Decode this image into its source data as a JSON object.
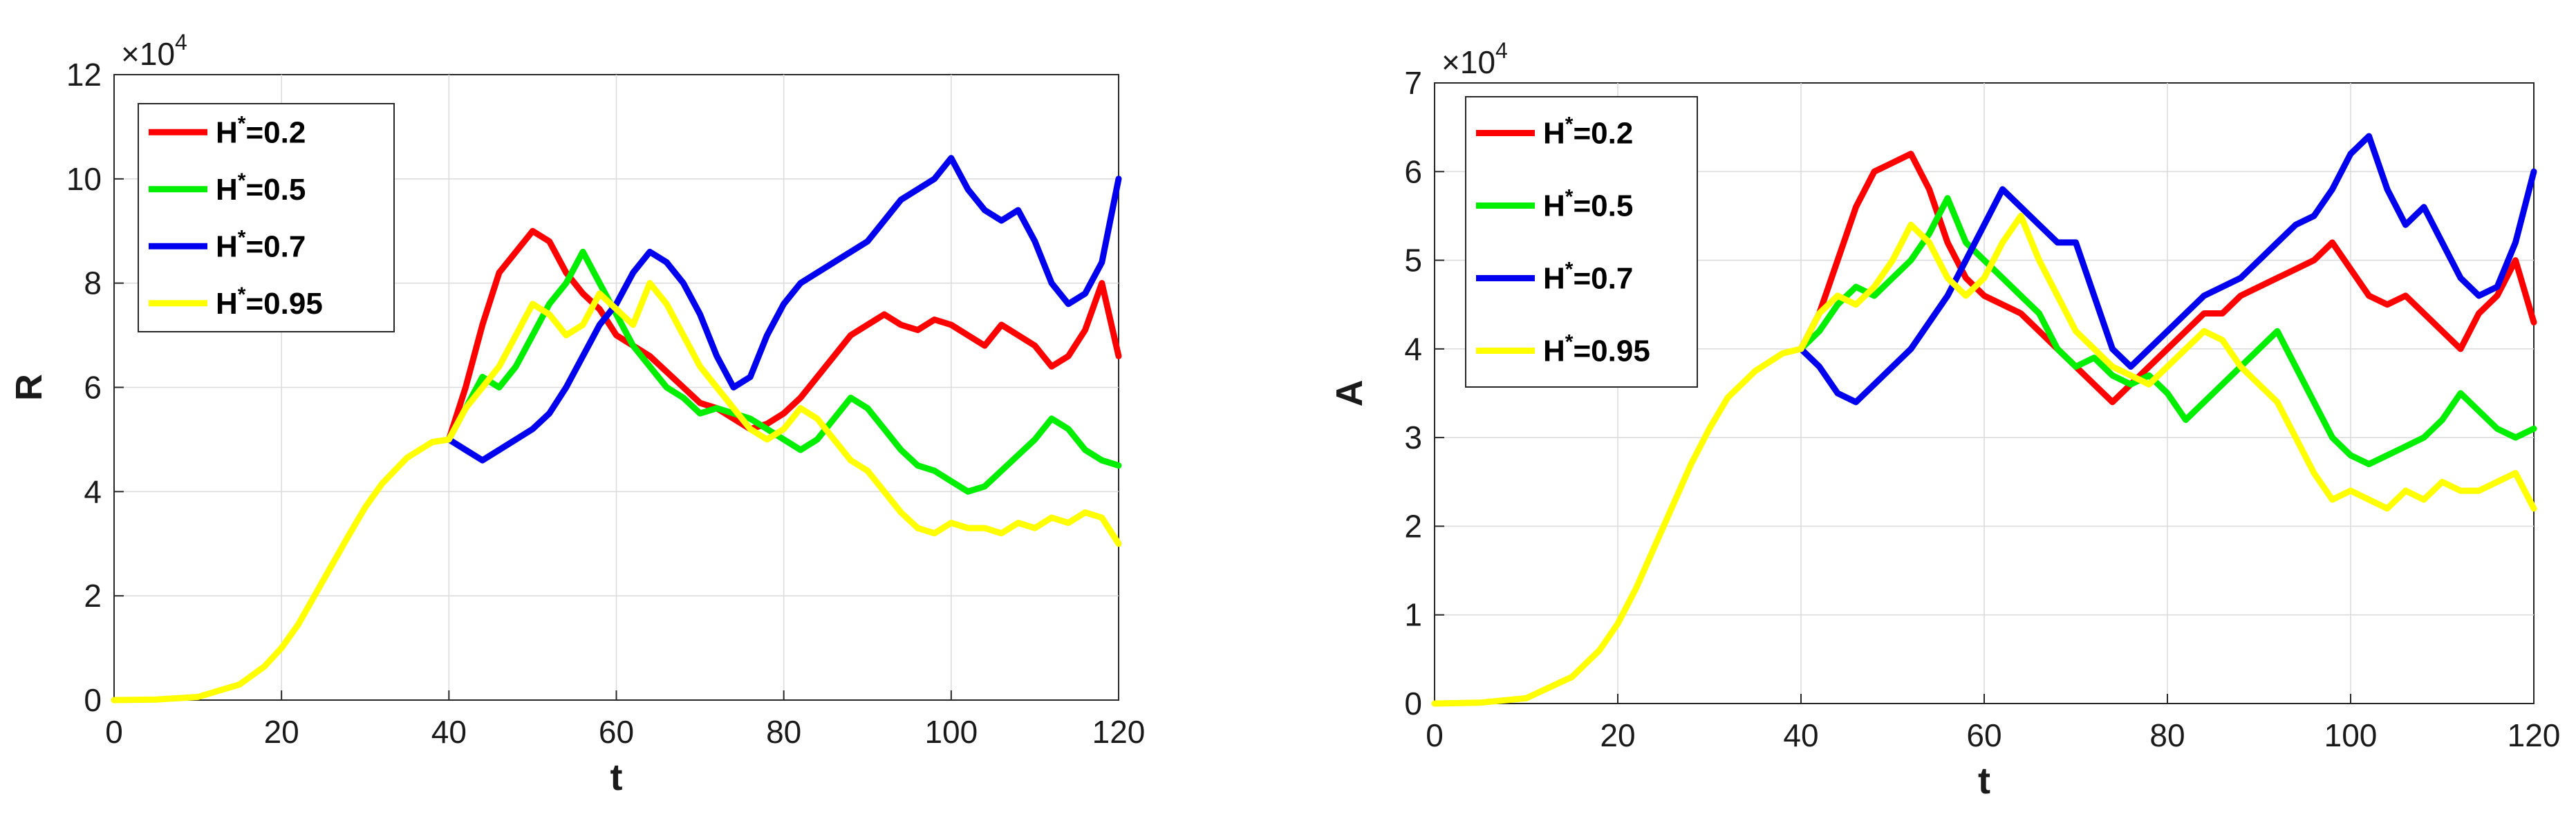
{
  "chart_data": [
    {
      "type": "line",
      "ylabel": "R",
      "xlabel": "t",
      "xlim": [
        0,
        120
      ],
      "ylim": [
        0,
        120000
      ],
      "xticks": [
        0,
        20,
        40,
        60,
        80,
        100,
        120
      ],
      "xtick_labels": [
        "0",
        "20",
        "40",
        "60",
        "80",
        "100",
        "120"
      ],
      "yticks": [
        0,
        20000,
        40000,
        60000,
        80000,
        100000,
        120000
      ],
      "ytick_labels": [
        "0",
        "2",
        "4",
        "6",
        "8",
        "10",
        "12"
      ],
      "exponent_label": {
        "base": "×10",
        "power": "4"
      },
      "grid": true,
      "legend_position": "top-left",
      "deterministic": {
        "x": [
          0,
          5,
          10,
          15,
          18,
          20,
          22,
          25,
          28,
          30,
          32,
          35,
          38,
          40
        ],
        "y": [
          0,
          100,
          600,
          3000,
          6500,
          10000,
          14500,
          23000,
          31500,
          37000,
          41500,
          46500,
          49500,
          50000
        ]
      },
      "series": [
        {
          "name": "H",
          "sup": "*",
          "value": "=0.2",
          "color": "#ff0000",
          "x": [
            40,
            42,
            44,
            46,
            48,
            50,
            52,
            54,
            56,
            58,
            60,
            62,
            64,
            66,
            68,
            70,
            72,
            74,
            76,
            78,
            80,
            82,
            84,
            86,
            88,
            90,
            92,
            94,
            96,
            98,
            100,
            102,
            104,
            106,
            108,
            110,
            112,
            114,
            116,
            118,
            120
          ],
          "y": [
            50000,
            60000,
            72000,
            82000,
            86000,
            90000,
            88000,
            82000,
            78000,
            75000,
            70000,
            68000,
            66000,
            63000,
            60000,
            57000,
            56000,
            54000,
            52000,
            53000,
            55000,
            58000,
            62000,
            66000,
            70000,
            72000,
            74000,
            72000,
            71000,
            73000,
            72000,
            70000,
            68000,
            72000,
            70000,
            68000,
            64000,
            66000,
            71000,
            80000,
            66000
          ]
        },
        {
          "name": "H",
          "sup": "*",
          "value": "=0.5",
          "color": "#00ee00",
          "x": [
            40,
            42,
            44,
            46,
            48,
            50,
            52,
            54,
            56,
            58,
            60,
            62,
            64,
            66,
            68,
            70,
            72,
            74,
            76,
            78,
            80,
            82,
            84,
            86,
            88,
            90,
            92,
            94,
            96,
            98,
            100,
            102,
            104,
            106,
            108,
            110,
            112,
            114,
            116,
            118,
            120
          ],
          "y": [
            50000,
            56000,
            62000,
            60000,
            64000,
            70000,
            76000,
            80000,
            86000,
            80000,
            74000,
            68000,
            64000,
            60000,
            58000,
            55000,
            56000,
            55000,
            54000,
            52000,
            50000,
            48000,
            50000,
            54000,
            58000,
            56000,
            52000,
            48000,
            45000,
            44000,
            42000,
            40000,
            41000,
            44000,
            47000,
            50000,
            54000,
            52000,
            48000,
            46000,
            45000
          ]
        },
        {
          "name": "H",
          "sup": "*",
          "value": "=0.7",
          "color": "#0000ee",
          "x": [
            40,
            42,
            44,
            46,
            48,
            50,
            52,
            54,
            56,
            58,
            60,
            62,
            64,
            66,
            68,
            70,
            72,
            74,
            76,
            78,
            80,
            82,
            84,
            86,
            88,
            90,
            92,
            94,
            96,
            98,
            100,
            102,
            104,
            106,
            108,
            110,
            112,
            114,
            116,
            118,
            120
          ],
          "y": [
            50000,
            48000,
            46000,
            48000,
            50000,
            52000,
            55000,
            60000,
            66000,
            72000,
            76000,
            82000,
            86000,
            84000,
            80000,
            74000,
            66000,
            60000,
            62000,
            70000,
            76000,
            80000,
            82000,
            84000,
            86000,
            88000,
            92000,
            96000,
            98000,
            100000,
            104000,
            98000,
            94000,
            92000,
            94000,
            88000,
            80000,
            76000,
            78000,
            84000,
            100000
          ]
        },
        {
          "name": "H",
          "sup": "*",
          "value": "=0.95",
          "color": "#ffff00",
          "x": [
            40,
            42,
            44,
            46,
            48,
            50,
            52,
            54,
            56,
            58,
            60,
            62,
            64,
            66,
            68,
            70,
            72,
            74,
            76,
            78,
            80,
            82,
            84,
            86,
            88,
            90,
            92,
            94,
            96,
            98,
            100,
            102,
            104,
            106,
            108,
            110,
            112,
            114,
            116,
            118,
            120
          ],
          "y": [
            50000,
            56000,
            60000,
            64000,
            70000,
            76000,
            74000,
            70000,
            72000,
            78000,
            75000,
            72000,
            80000,
            76000,
            70000,
            64000,
            60000,
            56000,
            52000,
            50000,
            52000,
            56000,
            54000,
            50000,
            46000,
            44000,
            40000,
            36000,
            33000,
            32000,
            34000,
            33000,
            33000,
            32000,
            34000,
            33000,
            35000,
            34000,
            36000,
            35000,
            30000
          ]
        }
      ]
    },
    {
      "type": "line",
      "ylabel": "A",
      "xlabel": "t",
      "xlim": [
        0,
        120
      ],
      "ylim": [
        0,
        70000
      ],
      "xticks": [
        0,
        20,
        40,
        60,
        80,
        100,
        120
      ],
      "xtick_labels": [
        "0",
        "20",
        "40",
        "60",
        "80",
        "100",
        "120"
      ],
      "yticks": [
        0,
        10000,
        20000,
        30000,
        40000,
        50000,
        60000,
        70000
      ],
      "ytick_labels": [
        "0",
        "1",
        "2",
        "3",
        "4",
        "5",
        "6",
        "7"
      ],
      "exponent_label": {
        "base": "×10",
        "power": "4"
      },
      "grid": true,
      "legend_position": "top-left",
      "deterministic": {
        "x": [
          0,
          5,
          10,
          15,
          18,
          20,
          22,
          25,
          28,
          30,
          32,
          35,
          38,
          40
        ],
        "y": [
          0,
          100,
          600,
          3000,
          6000,
          9000,
          13000,
          20000,
          27000,
          31000,
          34500,
          37500,
          39500,
          40000
        ]
      },
      "series": [
        {
          "name": "H",
          "sup": "*",
          "value": "=0.2",
          "color": "#ff0000",
          "x": [
            40,
            42,
            44,
            46,
            48,
            50,
            52,
            54,
            56,
            58,
            60,
            62,
            64,
            66,
            68,
            70,
            72,
            74,
            76,
            78,
            80,
            82,
            84,
            86,
            88,
            90,
            92,
            94,
            96,
            98,
            100,
            102,
            104,
            106,
            108,
            110,
            112,
            114,
            116,
            118,
            120
          ],
          "y": [
            40000,
            44000,
            50000,
            56000,
            60000,
            61000,
            62000,
            58000,
            52000,
            48000,
            46000,
            45000,
            44000,
            42000,
            40000,
            38000,
            36000,
            34000,
            36000,
            38000,
            40000,
            42000,
            44000,
            44000,
            46000,
            47000,
            48000,
            49000,
            50000,
            52000,
            49000,
            46000,
            45000,
            46000,
            44000,
            42000,
            40000,
            44000,
            46000,
            50000,
            43000
          ]
        },
        {
          "name": "H",
          "sup": "*",
          "value": "=0.5",
          "color": "#00ee00",
          "x": [
            40,
            42,
            44,
            46,
            48,
            50,
            52,
            54,
            56,
            58,
            60,
            62,
            64,
            66,
            68,
            70,
            72,
            74,
            76,
            78,
            80,
            82,
            84,
            86,
            88,
            90,
            92,
            94,
            96,
            98,
            100,
            102,
            104,
            106,
            108,
            110,
            112,
            114,
            116,
            118,
            120
          ],
          "y": [
            40000,
            42000,
            45000,
            47000,
            46000,
            48000,
            50000,
            53000,
            57000,
            52000,
            50000,
            48000,
            46000,
            44000,
            40000,
            38000,
            39000,
            37000,
            36000,
            37000,
            35000,
            32000,
            34000,
            36000,
            38000,
            40000,
            42000,
            38000,
            34000,
            30000,
            28000,
            27000,
            28000,
            29000,
            30000,
            32000,
            35000,
            33000,
            31000,
            30000,
            31000
          ]
        },
        {
          "name": "H",
          "sup": "*",
          "value": "=0.7",
          "color": "#0000ee",
          "x": [
            40,
            42,
            44,
            46,
            48,
            50,
            52,
            54,
            56,
            58,
            60,
            62,
            64,
            66,
            68,
            70,
            72,
            74,
            76,
            78,
            80,
            82,
            84,
            86,
            88,
            90,
            92,
            94,
            96,
            98,
            100,
            102,
            104,
            106,
            108,
            110,
            112,
            114,
            116,
            118,
            120
          ],
          "y": [
            40000,
            38000,
            35000,
            34000,
            36000,
            38000,
            40000,
            43000,
            46000,
            50000,
            54000,
            58000,
            56000,
            54000,
            52000,
            52000,
            46000,
            40000,
            38000,
            40000,
            42000,
            44000,
            46000,
            47000,
            48000,
            50000,
            52000,
            54000,
            55000,
            58000,
            62000,
            64000,
            58000,
            54000,
            56000,
            52000,
            48000,
            46000,
            47000,
            52000,
            60000
          ]
        },
        {
          "name": "H",
          "sup": "*",
          "value": "=0.95",
          "color": "#ffff00",
          "x": [
            40,
            42,
            44,
            46,
            48,
            50,
            52,
            54,
            56,
            58,
            60,
            62,
            64,
            66,
            68,
            70,
            72,
            74,
            76,
            78,
            80,
            82,
            84,
            86,
            88,
            90,
            92,
            94,
            96,
            98,
            100,
            102,
            104,
            106,
            108,
            110,
            112,
            114,
            116,
            118,
            120
          ],
          "y": [
            40000,
            44000,
            46000,
            45000,
            47000,
            50000,
            54000,
            52000,
            48000,
            46000,
            48000,
            52000,
            55000,
            50000,
            46000,
            42000,
            40000,
            38000,
            37000,
            36000,
            38000,
            40000,
            42000,
            41000,
            38000,
            36000,
            34000,
            30000,
            26000,
            23000,
            24000,
            23000,
            22000,
            24000,
            23000,
            25000,
            24000,
            24000,
            25000,
            26000,
            22000
          ]
        }
      ]
    }
  ]
}
